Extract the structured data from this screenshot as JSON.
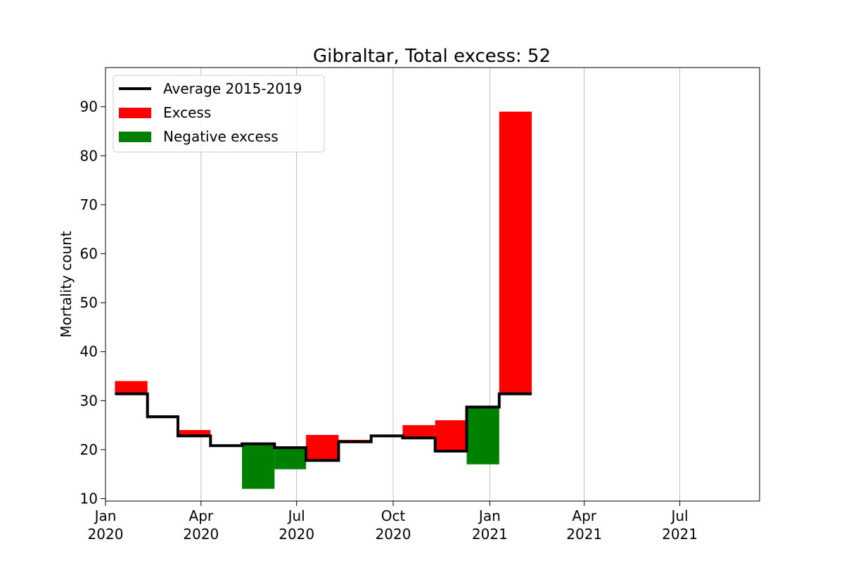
{
  "chart_data": {
    "type": "bar",
    "title": "Gibraltar, Total excess: 52",
    "ylabel": "Mortality count",
    "xlabel": "",
    "ylim": [
      9.5,
      98
    ],
    "xlim": [
      "2020-01-01",
      "2021-09-15"
    ],
    "grid": "x",
    "yticks": [
      10,
      20,
      30,
      40,
      50,
      60,
      70,
      80,
      90
    ],
    "xticks": [
      {
        "date": "2020-01-01",
        "line1": "Jan",
        "line2": "2020"
      },
      {
        "date": "2020-04-01",
        "line1": "Apr",
        "line2": "2020"
      },
      {
        "date": "2020-07-01",
        "line1": "Jul",
        "line2": "2020"
      },
      {
        "date": "2020-10-01",
        "line1": "Oct",
        "line2": "2020"
      },
      {
        "date": "2021-01-01",
        "line1": "Jan",
        "line2": "2021"
      },
      {
        "date": "2021-04-01",
        "line1": "Apr",
        "line2": "2021"
      },
      {
        "date": "2021-07-01",
        "line1": "Jul",
        "line2": "2021"
      }
    ],
    "legend": {
      "placement": "top-left",
      "entries": [
        {
          "label": "Average 2015-2019",
          "kind": "line",
          "color": "#000000"
        },
        {
          "label": "Excess",
          "kind": "patch",
          "color": "#ff0000"
        },
        {
          "label": "Negative excess",
          "kind": "patch",
          "color": "#008000"
        }
      ]
    },
    "colors": {
      "excess": "#ff0000",
      "negative": "#008000",
      "average": "#000000"
    },
    "periods": [
      {
        "start": "2020-01-10",
        "end": "2020-02-10",
        "average": 31.4,
        "actual": 34
      },
      {
        "start": "2020-02-10",
        "end": "2020-03-10",
        "average": 26.7,
        "actual": 27
      },
      {
        "start": "2020-03-10",
        "end": "2020-04-10",
        "average": 22.8,
        "actual": 24
      },
      {
        "start": "2020-04-10",
        "end": "2020-05-10",
        "average": 20.8,
        "actual": 21
      },
      {
        "start": "2020-05-10",
        "end": "2020-06-10",
        "average": 21.2,
        "actual": 12
      },
      {
        "start": "2020-06-10",
        "end": "2020-07-10",
        "average": 20.4,
        "actual": 16
      },
      {
        "start": "2020-07-10",
        "end": "2020-08-10",
        "average": 17.8,
        "actual": 23
      },
      {
        "start": "2020-08-10",
        "end": "2020-09-10",
        "average": 21.6,
        "actual": 22
      },
      {
        "start": "2020-09-10",
        "end": "2020-10-10",
        "average": 22.8,
        "actual": 23
      },
      {
        "start": "2020-10-10",
        "end": "2020-11-10",
        "average": 22.4,
        "actual": 25
      },
      {
        "start": "2020-11-10",
        "end": "2020-12-10",
        "average": 19.7,
        "actual": 26
      },
      {
        "start": "2020-12-10",
        "end": "2021-01-10",
        "average": 28.7,
        "actual": 17
      },
      {
        "start": "2021-01-10",
        "end": "2021-02-10",
        "average": 31.4,
        "actual": 89
      }
    ]
  }
}
